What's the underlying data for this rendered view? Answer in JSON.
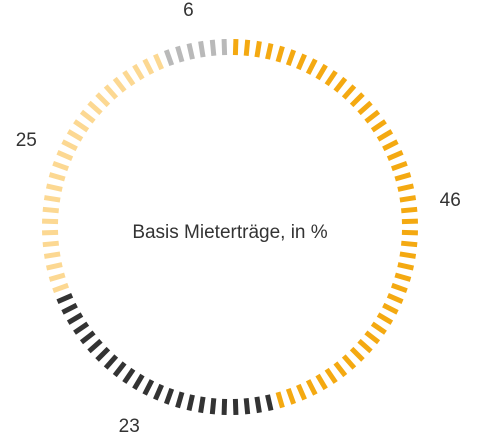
{
  "chart_data": {
    "type": "pie",
    "style": "dashed-donut",
    "center_label": "Basis Mieterträge, in %",
    "unit": "%",
    "segments": [
      {
        "value": 46,
        "label": "46",
        "color": "#F4A911"
      },
      {
        "value": 23,
        "label": "23",
        "color": "#333333"
      },
      {
        "value": 25,
        "label": "25",
        "color": "#FCD892"
      },
      {
        "value": 6,
        "label": "6",
        "color": "#B9B9B9"
      }
    ]
  }
}
